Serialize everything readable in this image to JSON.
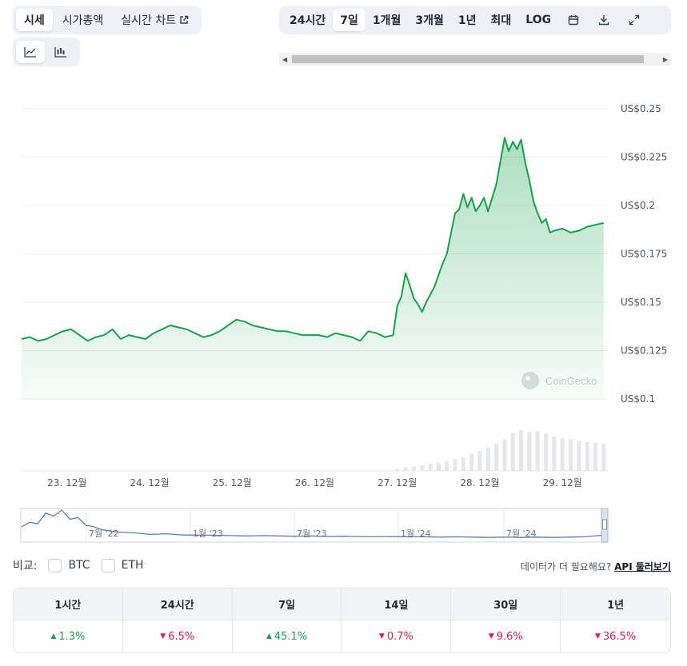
{
  "tabs": {
    "price": "시세",
    "market_cap": "시가총액",
    "live_chart": "실시간 차트"
  },
  "ranges": [
    "24시간",
    "7일",
    "1개월",
    "3개월",
    "1년",
    "최대",
    "LOG"
  ],
  "active_range_index": 1,
  "icons": {
    "external": "external-link-icon",
    "line_chart": "line-chart-icon",
    "candle_chart": "candlestick-chart-icon",
    "calendar": "calendar-icon",
    "download": "download-icon",
    "expand": "expand-icon"
  },
  "colors": {
    "line": "#16a34a",
    "fill": "#16a34a",
    "volume": "#e5e7eb",
    "navigator_line": "#5b7fbd",
    "up": "#16a34a",
    "down": "#e11d48"
  },
  "watermark": "CoinGecko",
  "chart_data": {
    "type": "line",
    "ylim": [
      0.1,
      0.25
    ],
    "y_ticks": [
      "US$0.25",
      "US$0.225",
      "US$0.2",
      "US$0.175",
      "US$0.15",
      "US$0.125",
      "US$0.1"
    ],
    "y_tick_values": [
      0.25,
      0.225,
      0.2,
      0.175,
      0.15,
      0.125,
      0.1
    ],
    "x_ticks": [
      "23. 12월",
      "24. 12월",
      "25. 12월",
      "26. 12월",
      "27. 12월",
      "28. 12월",
      "29. 12월"
    ],
    "x_tick_days": [
      23,
      24,
      25,
      26,
      27,
      28,
      29
    ],
    "xlim": [
      22.45,
      29.55
    ],
    "grid": true,
    "series": [
      {
        "x": [
          22.45,
          22.55,
          22.65,
          22.75,
          22.85,
          22.95,
          23.05,
          23.15,
          23.25,
          23.35,
          23.45,
          23.55,
          23.65,
          23.75,
          23.85,
          23.95,
          24.05,
          24.15,
          24.25,
          24.35,
          24.45,
          24.55,
          24.65,
          24.75,
          24.85,
          24.95,
          25.05,
          25.15,
          25.25,
          25.35,
          25.45,
          25.55,
          25.65,
          25.75,
          25.85,
          25.95,
          26.05,
          26.15,
          26.25,
          26.35,
          26.45,
          26.55,
          26.65,
          26.75,
          26.85,
          26.95,
          27.0,
          27.05,
          27.1,
          27.15,
          27.2,
          27.25,
          27.3,
          27.35,
          27.45,
          27.55,
          27.6,
          27.7,
          27.75,
          27.8,
          27.85,
          27.9,
          27.95,
          28.0,
          28.05,
          28.1,
          28.2,
          28.3,
          28.35,
          28.4,
          28.45,
          28.5,
          28.55,
          28.6,
          28.65,
          28.7,
          28.75,
          28.8,
          28.85,
          28.9,
          29.0,
          29.1,
          29.2,
          29.3,
          29.4,
          29.5
        ],
        "y": [
          0.131,
          0.132,
          0.13,
          0.131,
          0.133,
          0.135,
          0.136,
          0.133,
          0.13,
          0.132,
          0.133,
          0.136,
          0.131,
          0.133,
          0.132,
          0.131,
          0.134,
          0.136,
          0.138,
          0.137,
          0.136,
          0.134,
          0.132,
          0.133,
          0.135,
          0.138,
          0.141,
          0.14,
          0.138,
          0.137,
          0.136,
          0.135,
          0.135,
          0.134,
          0.133,
          0.133,
          0.133,
          0.132,
          0.134,
          0.133,
          0.132,
          0.13,
          0.135,
          0.134,
          0.132,
          0.133,
          0.148,
          0.153,
          0.165,
          0.159,
          0.152,
          0.149,
          0.145,
          0.15,
          0.158,
          0.17,
          0.175,
          0.196,
          0.198,
          0.206,
          0.199,
          0.204,
          0.197,
          0.2,
          0.204,
          0.197,
          0.211,
          0.235,
          0.228,
          0.233,
          0.229,
          0.234,
          0.222,
          0.213,
          0.202,
          0.196,
          0.191,
          0.193,
          0.186,
          0.187,
          0.188,
          0.186,
          0.187,
          0.189,
          0.19,
          0.191
        ]
      }
    ],
    "volume": {
      "x": [
        27.0,
        27.1,
        27.2,
        27.3,
        27.4,
        27.5,
        27.6,
        27.7,
        27.8,
        27.9,
        28.0,
        28.1,
        28.2,
        28.3,
        28.4,
        28.5,
        28.6,
        28.7,
        28.8,
        28.9,
        29.0,
        29.1,
        29.2,
        29.3,
        29.4,
        29.5
      ],
      "values": [
        2,
        4,
        5,
        6,
        8,
        9,
        11,
        13,
        15,
        19,
        22,
        26,
        30,
        35,
        42,
        45,
        43,
        44,
        41,
        38,
        36,
        35,
        33,
        32,
        31,
        30
      ]
    }
  },
  "navigator": {
    "labels": [
      "7월 '22",
      "1월 '23",
      "7월 '23",
      "1월 '24",
      "7월 '24"
    ],
    "x": [
      0,
      0.5,
      1,
      1.5,
      2,
      2.5,
      3,
      3.5,
      4,
      4.5,
      5,
      6,
      7,
      8,
      9,
      10,
      11,
      12,
      13,
      14,
      15,
      16,
      17,
      18,
      19,
      20,
      21,
      22,
      23,
      24,
      25,
      26,
      27,
      28,
      29,
      30,
      31,
      32,
      33,
      34,
      35,
      36
    ],
    "y": [
      0.45,
      0.6,
      0.55,
      0.9,
      0.8,
      1.0,
      0.7,
      0.75,
      0.5,
      0.45,
      0.35,
      0.28,
      0.25,
      0.2,
      0.22,
      0.18,
      0.18,
      0.17,
      0.16,
      0.15,
      0.16,
      0.15,
      0.14,
      0.15,
      0.13,
      0.14,
      0.13,
      0.12,
      0.13,
      0.12,
      0.12,
      0.11,
      0.12,
      0.11,
      0.1,
      0.11,
      0.1,
      0.11,
      0.1,
      0.11,
      0.12,
      0.17
    ]
  },
  "compare": {
    "label": "비교:",
    "options": [
      "BTC",
      "ETH"
    ]
  },
  "api": {
    "prompt": "데이터가 더 필요해요?",
    "link": "API 둘러보기"
  },
  "performance": [
    {
      "period": "1시간",
      "value": "1.3%",
      "dir": "up"
    },
    {
      "period": "24시간",
      "value": "6.5%",
      "dir": "down"
    },
    {
      "period": "7일",
      "value": "45.1%",
      "dir": "up"
    },
    {
      "period": "14일",
      "value": "0.7%",
      "dir": "down"
    },
    {
      "period": "30일",
      "value": "9.6%",
      "dir": "down"
    },
    {
      "period": "1년",
      "value": "36.5%",
      "dir": "down"
    }
  ]
}
